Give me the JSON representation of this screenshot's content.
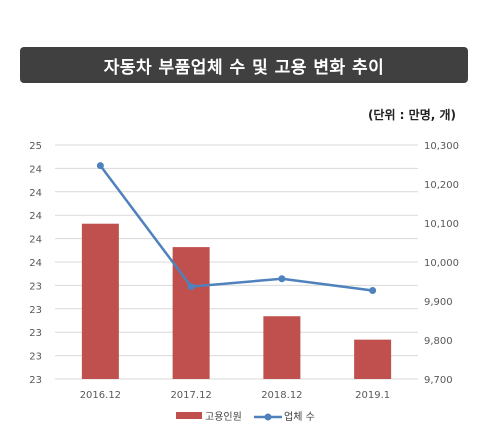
{
  "header": {
    "title": "자동차 부품업체 수 및 고용 변화 추이",
    "unit_note": "(단위 : 만명, 개)"
  },
  "chart_data": {
    "type": "bar",
    "categories": [
      "2016.12",
      "2017.12",
      "2018.12",
      "2019.1"
    ],
    "series": [
      {
        "name": "고용인원",
        "type": "bar",
        "axis": "left",
        "values": [
          24.26,
          24.04,
          23.39,
          23.17
        ],
        "color": "#c0504d"
      },
      {
        "name": "업체 수",
        "type": "line",
        "axis": "right",
        "values": [
          10247,
          9937,
          9957,
          9927
        ],
        "color": "#4f81bd"
      }
    ],
    "left_axis": {
      "min": 22.8,
      "max": 25.0,
      "step": 0.2,
      "tick_labels": [
        "23",
        "23",
        "23",
        "23",
        "23",
        "24",
        "24",
        "24",
        "24",
        "24",
        "25"
      ]
    },
    "right_axis": {
      "min": 9700,
      "max": 10300,
      "step": 100,
      "tick_labels": [
        "9,700",
        "9,800",
        "9,900",
        "10,000",
        "10,100",
        "10,200",
        "10,300"
      ]
    },
    "grid": true,
    "legend_position": "bottom"
  }
}
